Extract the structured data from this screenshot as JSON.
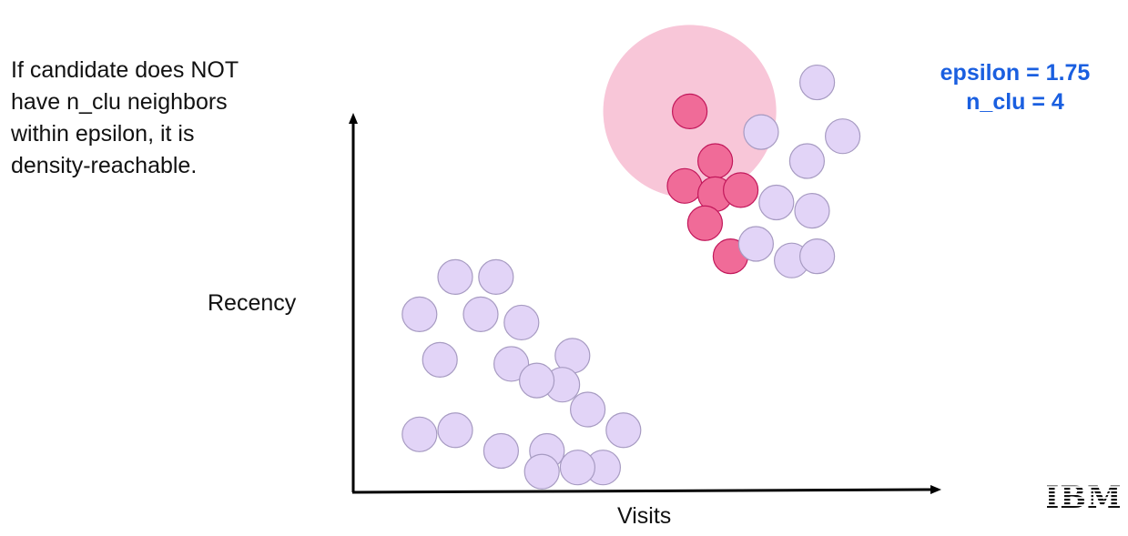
{
  "caption": {
    "lines": [
      "If candidate does NOT",
      "have n_clu neighbors",
      "within epsilon, it is",
      "density-reachable."
    ]
  },
  "params": {
    "epsilon_label": "epsilon = 1.75",
    "n_clu_label": "n_clu = 4",
    "color": "#1a5fe0"
  },
  "axes": {
    "y_label": "Recency",
    "x_label": "Visits",
    "color": "#000000"
  },
  "logo": {
    "text": "IBM"
  },
  "colors": {
    "highlight_point": "#f06b98",
    "highlight_stroke": "#c2185b",
    "normal_point": "#e2d4f7",
    "normal_stroke": "#a79bc2",
    "epsilon_region": "#f8c6d8"
  },
  "chart_data": {
    "type": "scatter",
    "xlabel": "Visits",
    "ylabel": "Recency",
    "grid": false,
    "epsilon_circle": {
      "center_point": "P1",
      "radius": 1.75
    },
    "series": [
      {
        "highlighted": true,
        "points": [
          {
            "id": "P1",
            "x": 6.6,
            "y": 9.2
          },
          {
            "id": "P2",
            "x": 7.1,
            "y": 8.0
          },
          {
            "id": "P3",
            "x": 6.5,
            "y": 7.4
          },
          {
            "id": "P4",
            "x": 7.1,
            "y": 7.2
          },
          {
            "id": "P5",
            "x": 7.6,
            "y": 7.3
          },
          {
            "id": "P6",
            "x": 6.9,
            "y": 6.5
          },
          {
            "id": "P7",
            "x": 7.4,
            "y": 5.7
          }
        ]
      },
      {
        "highlighted": false,
        "points": [
          {
            "x": 9.1,
            "y": 9.9
          },
          {
            "x": 8.0,
            "y": 8.7
          },
          {
            "x": 9.6,
            "y": 8.6
          },
          {
            "x": 8.9,
            "y": 8.0
          },
          {
            "x": 8.3,
            "y": 7.0
          },
          {
            "x": 9.0,
            "y": 6.8
          },
          {
            "x": 7.9,
            "y": 6.0
          },
          {
            "x": 8.6,
            "y": 5.6
          },
          {
            "x": 9.1,
            "y": 5.7
          },
          {
            "x": 2.0,
            "y": 5.2
          },
          {
            "x": 2.8,
            "y": 5.2
          },
          {
            "x": 1.3,
            "y": 4.3
          },
          {
            "x": 2.5,
            "y": 4.3
          },
          {
            "x": 3.3,
            "y": 4.1
          },
          {
            "x": 1.7,
            "y": 3.2
          },
          {
            "x": 3.1,
            "y": 3.1
          },
          {
            "x": 4.3,
            "y": 3.3
          },
          {
            "x": 1.3,
            "y": 1.4
          },
          {
            "x": 2.9,
            "y": 1.0
          },
          {
            "x": 3.8,
            "y": 1.0
          },
          {
            "x": 4.6,
            "y": 2.0
          },
          {
            "x": 5.3,
            "y": 1.5
          },
          {
            "x": 4.1,
            "y": 2.6
          },
          {
            "x": 2.0,
            "y": 1.5
          },
          {
            "x": 3.6,
            "y": 2.7
          },
          {
            "x": 4.9,
            "y": 0.6
          },
          {
            "x": 3.7,
            "y": 0.5
          },
          {
            "x": 4.4,
            "y": 0.6
          }
        ]
      }
    ]
  }
}
